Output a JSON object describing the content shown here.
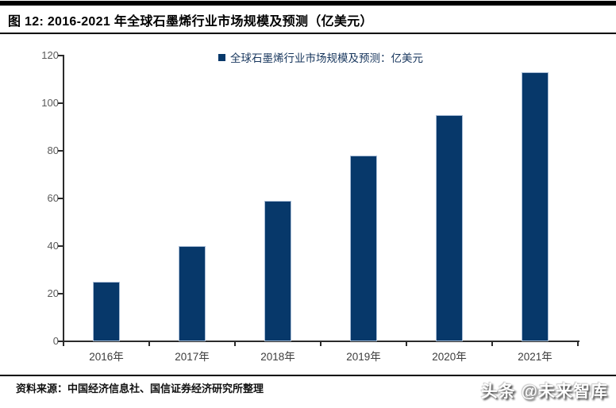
{
  "page": {
    "header": {
      "title": "图 12:  2016-2021 年全球石墨烯行业市场规模及预测（亿美元）"
    },
    "footer": {
      "source": "资料来源：中国经济信息社、国信证券经济研究所整理",
      "watermark": "头条 @未来智库"
    }
  },
  "chart_data": {
    "type": "bar",
    "title": "2016-2021 年全球石墨烯行业市场规模及预测（亿美元）",
    "legend": {
      "label": "全球石墨烯行业市场规模及预测：亿美元",
      "position": "top-center"
    },
    "categories": [
      "2016年",
      "2017年",
      "2018年",
      "2019年",
      "2020年",
      "2021年"
    ],
    "values": [
      25,
      40,
      59,
      78,
      95,
      113
    ],
    "xlabel": "",
    "ylabel": "",
    "ylim": [
      0,
      120
    ],
    "yticks": [
      0,
      20,
      40,
      60,
      80,
      100,
      120
    ],
    "grid": false,
    "colors": {
      "bar": "#07386a",
      "bar_border": "#a9bdd6",
      "legend_text": "#17365d",
      "axis": "#2b2b2b",
      "y_tick_label": "#595959",
      "x_tick_label": "#3d3d3d"
    }
  }
}
